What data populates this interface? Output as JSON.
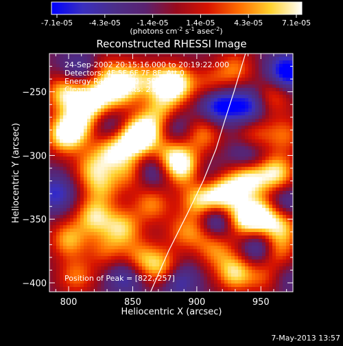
{
  "chart_data": {
    "type": "heatmap",
    "title": "Reconstructed RHESSI Image",
    "xlabel": "Heliocentric X (arcsec)",
    "ylabel": "Heliocentric Y (arcsec)",
    "xlim": [
      785,
      975
    ],
    "ylim": [
      -407,
      -220
    ],
    "xticks": [
      800,
      850,
      900,
      950
    ],
    "yticks": [
      -250,
      -300,
      -350,
      -400
    ],
    "colorbar": {
      "range": [
        -7.1e-05,
        7.1e-05
      ],
      "tick_labels": [
        "-7.1e-05",
        "-4.3e-05",
        "-1.4e-05",
        "1.4e-05",
        "4.3e-05",
        "7.1e-05"
      ],
      "units_label": "(photons cm-2 s-1 asec-2)",
      "colors": [
        "#0000ff",
        "#3a2fbf",
        "#4b2e8a",
        "#5a2270",
        "#9a0a1c",
        "#d81400",
        "#ff6e00",
        "#ffd22e",
        "#ffffff"
      ]
    },
    "annotations": {
      "time": "24-Sep-2002 20:15:16.000 to 20:19:22.000",
      "detectors": "Detectors: 4F 5F 6F 7F 8F, Att 0",
      "energy": "Energy Range: 25.0 - 50.0 keV",
      "method": "Clean    Total counts: 2.24E+03",
      "peak": "Position of Peak = [822,-257]"
    },
    "limb": [
      [
        864,
        -407
      ],
      [
        878,
        -375
      ],
      [
        893,
        -345
      ],
      [
        905,
        -320
      ],
      [
        915,
        -295
      ],
      [
        922,
        -272
      ],
      [
        929,
        -250
      ],
      [
        935,
        -230
      ],
      [
        938,
        -220
      ]
    ],
    "sources": [
      {
        "x": 797,
        "y": -251,
        "v": 0.85
      },
      {
        "x": 818,
        "y": -257,
        "v": 1.0
      },
      {
        "x": 838,
        "y": -250,
        "v": 0.75
      },
      {
        "x": 851,
        "y": -240,
        "v": 0.6
      },
      {
        "x": 871,
        "y": -243,
        "v": 0.55
      },
      {
        "x": 884,
        "y": -244,
        "v": 0.95
      },
      {
        "x": 873,
        "y": -265,
        "v": 0.6
      },
      {
        "x": 862,
        "y": -280,
        "v": 0.7
      },
      {
        "x": 797,
        "y": -284,
        "v": 0.95
      },
      {
        "x": 808,
        "y": -275,
        "v": 0.7
      },
      {
        "x": 852,
        "y": -287,
        "v": 1.0
      },
      {
        "x": 834,
        "y": -296,
        "v": 0.8
      },
      {
        "x": 818,
        "y": -310,
        "v": 0.6
      },
      {
        "x": 880,
        "y": -300,
        "v": 0.7
      },
      {
        "x": 890,
        "y": -310,
        "v": 0.9
      },
      {
        "x": 905,
        "y": -283,
        "v": 0.6
      },
      {
        "x": 903,
        "y": -335,
        "v": 0.9
      },
      {
        "x": 921,
        "y": -330,
        "v": 1.0
      },
      {
        "x": 940,
        "y": -318,
        "v": 1.0
      },
      {
        "x": 962,
        "y": -314,
        "v": 0.9
      },
      {
        "x": 905,
        "y": -358,
        "v": 0.55
      },
      {
        "x": 936,
        "y": -350,
        "v": 0.8
      },
      {
        "x": 950,
        "y": -347,
        "v": 0.9
      },
      {
        "x": 966,
        "y": -355,
        "v": 0.75
      },
      {
        "x": 865,
        "y": -338,
        "v": 0.6
      },
      {
        "x": 842,
        "y": -357,
        "v": 0.75
      },
      {
        "x": 820,
        "y": -348,
        "v": 0.8
      },
      {
        "x": 826,
        "y": -325,
        "v": 0.55
      },
      {
        "x": 848,
        "y": -313,
        "v": 0.55
      },
      {
        "x": 800,
        "y": -366,
        "v": 0.7
      },
      {
        "x": 873,
        "y": -388,
        "v": 0.75
      },
      {
        "x": 856,
        "y": -381,
        "v": 0.6
      },
      {
        "x": 930,
        "y": -392,
        "v": 0.85
      },
      {
        "x": 915,
        "y": -374,
        "v": 0.55
      },
      {
        "x": 955,
        "y": -395,
        "v": 0.6
      },
      {
        "x": 962,
        "y": -375,
        "v": 0.7
      },
      {
        "x": 945,
        "y": -283,
        "v": 0.5
      },
      {
        "x": 960,
        "y": -253,
        "v": 0.55
      },
      {
        "x": 912,
        "y": -245,
        "v": 0.5
      },
      {
        "x": 806,
        "y": -395,
        "v": 0.55
      },
      {
        "x": 829,
        "y": -375,
        "v": 0.45
      },
      {
        "x": 889,
        "y": -360,
        "v": 0.45
      },
      {
        "x": 830,
        "y": -236,
        "v": 0.5
      },
      {
        "x": 930,
        "y": -232,
        "v": 0.55
      },
      {
        "x": 969,
        "y": -284,
        "v": 0.5
      },
      {
        "x": 950,
        "y": -373,
        "v": -0.7
      },
      {
        "x": 917,
        "y": -260,
        "v": -0.85
      },
      {
        "x": 913,
        "y": -352,
        "v": -0.9
      },
      {
        "x": 970,
        "y": -235,
        "v": -0.9
      },
      {
        "x": 865,
        "y": -312,
        "v": -0.5
      },
      {
        "x": 790,
        "y": -330,
        "v": -0.55
      },
      {
        "x": 845,
        "y": -395,
        "v": -0.5
      },
      {
        "x": 885,
        "y": -398,
        "v": -0.55
      },
      {
        "x": 832,
        "y": -278,
        "v": -0.4
      },
      {
        "x": 940,
        "y": -262,
        "v": -0.7
      },
      {
        "x": 808,
        "y": -233,
        "v": -0.45
      },
      {
        "x": 882,
        "y": -278,
        "v": -0.45
      },
      {
        "x": 905,
        "y": -318,
        "v": -0.4
      },
      {
        "x": 940,
        "y": -302,
        "v": -0.5
      },
      {
        "x": 968,
        "y": -338,
        "v": -0.5
      },
      {
        "x": 965,
        "y": -395,
        "v": -0.4
      }
    ]
  },
  "footer": {
    "date": "7-May-2013 13:57"
  }
}
